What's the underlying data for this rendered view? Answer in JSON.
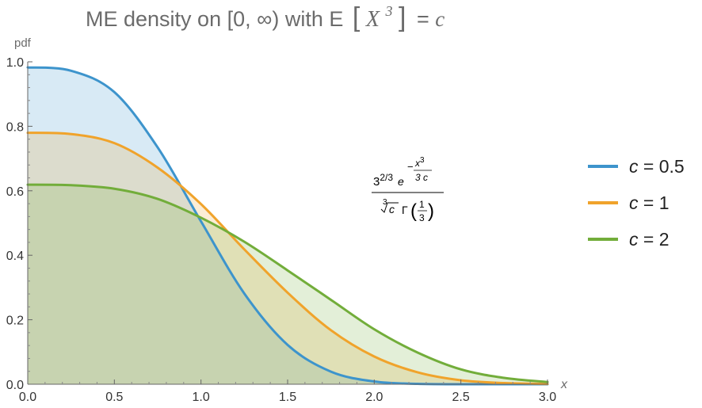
{
  "title": {
    "prefix": "ME density on [0, ∞) with E",
    "variable": "X",
    "exponent": "3",
    "equals": "= ",
    "constant": "c"
  },
  "formula": {
    "coeff_base": "3",
    "coeff_exp": "2/3",
    "exp_base": "e",
    "exp_sign": "−",
    "exp_num_var": "x",
    "exp_num_pow": "3",
    "exp_den": "3 c",
    "den_root_index": "3",
    "den_root_arg": "c",
    "den_gamma": "Γ",
    "den_gamma_num": "1",
    "den_gamma_den": "3"
  },
  "chart_data": {
    "type": "area",
    "title": "ME density on [0, ∞) with E[X^3] = c",
    "xlabel": "x",
    "ylabel": "pdf",
    "xlim": [
      0,
      3
    ],
    "ylim": [
      0,
      1
    ],
    "x_ticks": [
      "0.0",
      "0.5",
      "1.0",
      "1.5",
      "2.0",
      "2.5",
      "3.0"
    ],
    "y_ticks": [
      "0.0",
      "0.2",
      "0.4",
      "0.6",
      "0.8",
      "1.0"
    ],
    "grid": false,
    "legend_position": "right",
    "x": [
      0.0,
      0.25,
      0.5,
      0.75,
      1.0,
      1.25,
      1.5,
      1.75,
      2.0,
      2.25,
      2.5,
      2.75,
      3.0
    ],
    "series": [
      {
        "name": "c = 0.5",
        "var": "c",
        "rest": " = 0.5",
        "color": "#3d94cc",
        "values": [
          0.9826,
          0.9723,
          0.9059,
          0.7345,
          0.5051,
          0.2814,
          0.122,
          0.0391,
          0.0085,
          0.0011,
          0.0001,
          0.0,
          0.0
        ]
      },
      {
        "name": "c = 1",
        "var": "c",
        "rest": " = 1",
        "color": "#f0a32b",
        "values": [
          0.7799,
          0.7758,
          0.7478,
          0.6717,
          0.5588,
          0.4183,
          0.284,
          0.1676,
          0.086,
          0.0369,
          0.0122,
          0.0036,
          0.0009
        ]
      },
      {
        "name": "c = 2",
        "var": "c",
        "rest": " = 2",
        "color": "#72ad3a",
        "values": [
          0.619,
          0.6174,
          0.6063,
          0.5747,
          0.5164,
          0.4419,
          0.353,
          0.2618,
          0.1704,
          0.0983,
          0.0461,
          0.0196,
          0.0067
        ]
      }
    ]
  }
}
